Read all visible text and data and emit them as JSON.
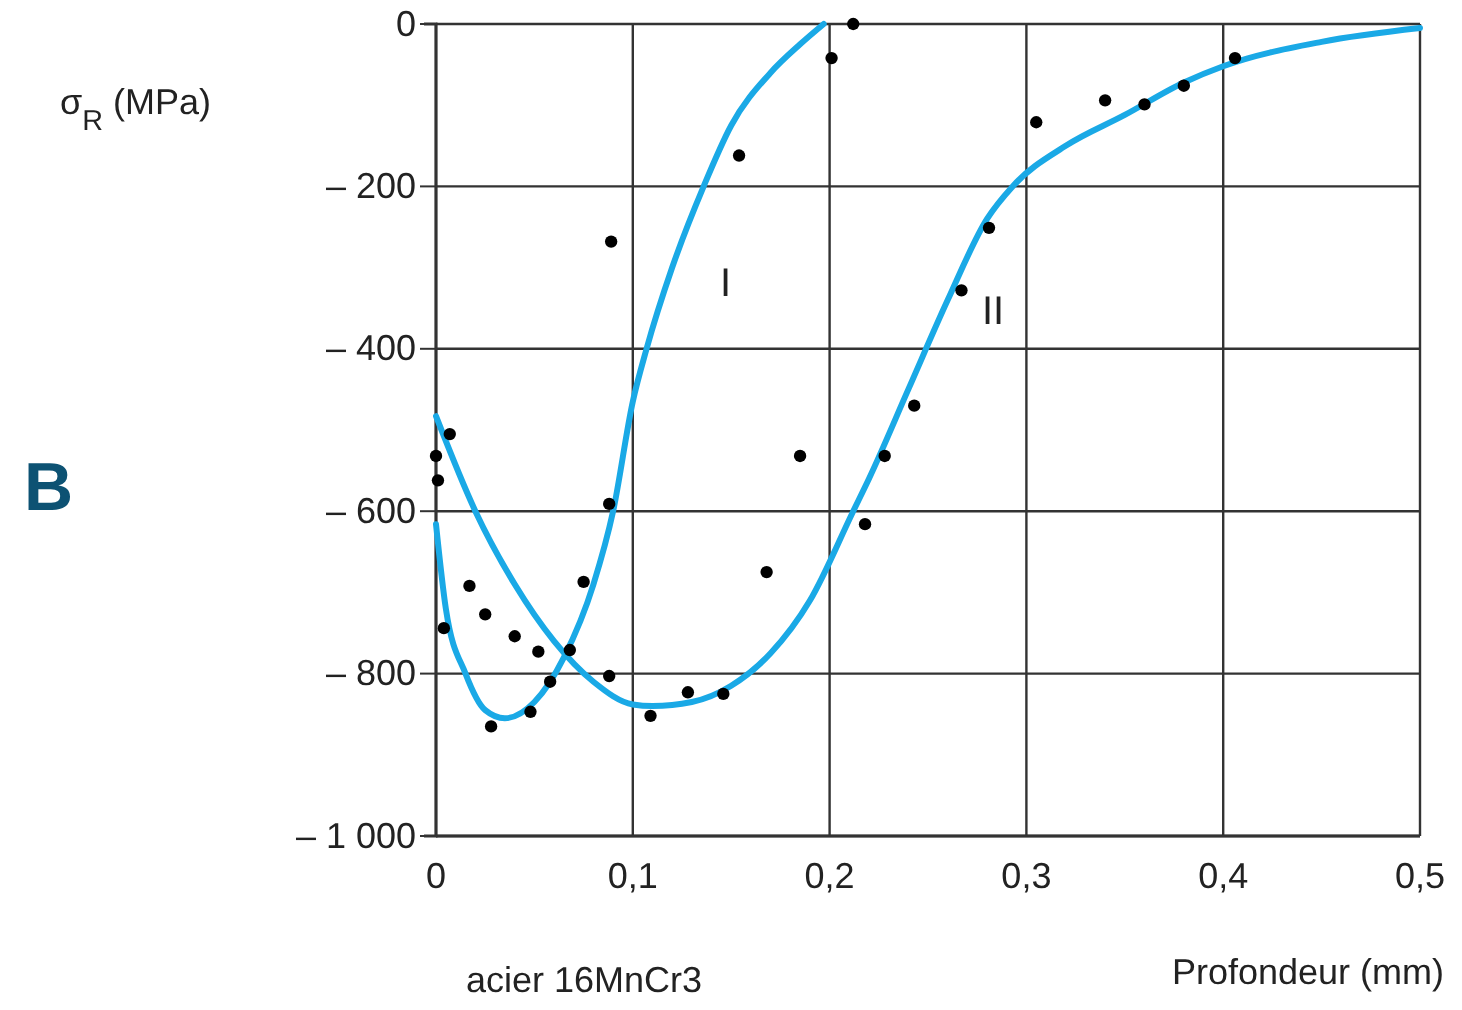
{
  "chart_data": {
    "type": "scatter",
    "ylabel": "σ$_{R}$ (MPa)",
    "xlabel": "Profondeur (mm)",
    "xlim": [
      0,
      0.5
    ],
    "xticks": [
      0,
      {
        "value": 0.1,
        "label": "0,1"
      },
      {
        "value": 0.2,
        "label": "0,2"
      },
      {
        "value": 0.3,
        "label": "0,3"
      },
      {
        "value": 0.4,
        "label": "0,4"
      },
      {
        "value": 0.5,
        "label": "0,5"
      }
    ],
    "ylim": [
      -1000,
      0
    ],
    "yticks": [
      {
        "value": -1000,
        "label": "– 1 000"
      },
      {
        "value": -800,
        "label": "– 800"
      },
      {
        "value": -600,
        "label": "– 600"
      },
      {
        "value": -400,
        "label": "– 400"
      },
      {
        "value": -200,
        "label": "– 200"
      },
      0
    ],
    "grid": true,
    "series": [
      {
        "color": "#000000",
        "marker": "circle",
        "x": [
          0,
          0.001,
          0.004,
          0.007,
          0.017,
          0.025,
          0.028,
          0.04,
          0.048,
          0.052,
          0.058,
          0.068,
          0.075,
          0.088,
          0.088,
          0.089,
          0.109,
          0.128,
          0.146,
          0.154,
          0.168,
          0.185,
          0.201,
          0.212,
          0.218,
          0.228,
          0.243,
          0.267,
          0.281,
          0.305,
          0.34,
          0.36,
          0.38,
          0.406
        ],
        "values": [
          -532,
          -562,
          -744,
          -505,
          -692,
          -727,
          -865,
          -754,
          -847,
          -773,
          -810,
          -771,
          -687,
          -591,
          -803,
          -268,
          -852,
          -823,
          -825,
          -162,
          -675,
          -532,
          -42,
          0,
          -616,
          -532,
          -470,
          -328,
          -251,
          -121,
          -94,
          -99,
          -76,
          -42
        ]
      },
      {
        "type": "line",
        "color": "#1aa9e6",
        "marker": "none",
        "line_style": "solid",
        "x": [
          0,
          0.005,
          0.015,
          0.025,
          0.035,
          0.05,
          0.065,
          0.08,
          0.09,
          0.1,
          0.107,
          0.12,
          0.136,
          0.15,
          0.17,
          0.185,
          0.197
        ],
        "values": [
          -616,
          -720,
          -800,
          -845,
          -855,
          -835,
          -780,
          -690,
          -600,
          -465,
          -400,
          -300,
          -200,
          -125,
          -60,
          -25,
          0
        ]
      },
      {
        "type": "line",
        "color": "#1aa9e6",
        "marker": "none",
        "line_style": "solid",
        "x": [
          0,
          0.02,
          0.04,
          0.06,
          0.08,
          0.1,
          0.11,
          0.13,
          0.15,
          0.17,
          0.19,
          0.212,
          0.22,
          0.24,
          0.26,
          0.28,
          0.293,
          0.32,
          0.35,
          0.38,
          0.4,
          0.45,
          0.5
        ],
        "values": [
          -483,
          -600,
          -690,
          -760,
          -810,
          -838,
          -840,
          -835,
          -815,
          -775,
          -710,
          -600,
          -560,
          -450,
          -340,
          -240,
          -200,
          -150,
          -112,
          -72,
          -52,
          -22,
          -5
        ]
      }
    ],
    "annotations": [
      "I",
      "II",
      "acier 16MnCr3",
      "B"
    ]
  }
}
